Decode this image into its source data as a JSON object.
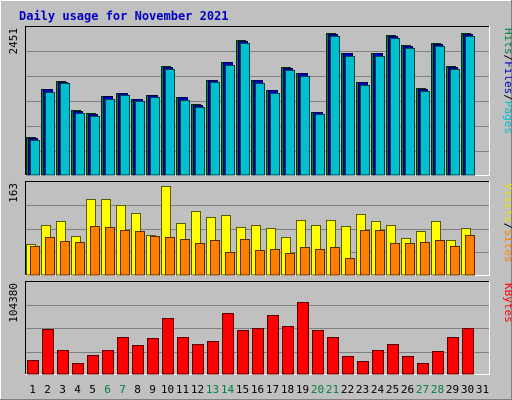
{
  "chart_data": [
    {
      "type": "bar",
      "title": "Daily usage for November 2021",
      "xlabel": "",
      "ylabel_parts": [
        {
          "text": "Pages",
          "color": "#00c0d0"
        },
        {
          "text": "/",
          "color": "#000000"
        },
        {
          "text": "Files",
          "color": "#0000c0"
        },
        {
          "text": "/",
          "color": "#000000"
        },
        {
          "text": "Hits",
          "color": "#008040"
        }
      ],
      "ymax_label": "2451",
      "ylim": [
        0,
        2451
      ],
      "categories": [
        "1",
        "2",
        "3",
        "4",
        "5",
        "6",
        "7",
        "8",
        "9",
        "10",
        "11",
        "12",
        "13",
        "14",
        "15",
        "16",
        "17",
        "18",
        "19",
        "20",
        "21",
        "22",
        "23",
        "24",
        "25",
        "26",
        "27",
        "28",
        "29",
        "30",
        "31"
      ],
      "weekend_categories": [
        "6",
        "7",
        "13",
        "14",
        "20",
        "21",
        "27",
        "28"
      ],
      "series": [
        {
          "name": "Hits",
          "color": "#008040",
          "values": [
            640,
            1470,
            1600,
            1100,
            1050,
            1350,
            1400,
            1300,
            1370,
            1850,
            1330,
            1200,
            1620,
            1930,
            2290,
            1620,
            1450,
            1830,
            1740,
            1080,
            2410,
            2080,
            1590,
            2080,
            2380,
            2210,
            1480,
            2240,
            1850,
            2410,
            0
          ]
        },
        {
          "name": "Files",
          "color": "#0000c0",
          "values": [
            630,
            1460,
            1590,
            1090,
            1040,
            1340,
            1390,
            1290,
            1360,
            1840,
            1320,
            1190,
            1610,
            1920,
            2280,
            1610,
            1440,
            1820,
            1730,
            1070,
            2400,
            2070,
            1580,
            2070,
            2370,
            2200,
            1470,
            2230,
            1840,
            2400,
            0
          ]
        },
        {
          "name": "Pages",
          "color": "#00c0d0",
          "values": [
            600,
            1420,
            1560,
            1060,
            1010,
            1300,
            1360,
            1260,
            1320,
            1810,
            1280,
            1150,
            1580,
            1880,
            2240,
            1570,
            1400,
            1780,
            1690,
            1030,
            2360,
            2030,
            1540,
            2030,
            2330,
            2160,
            1430,
            2190,
            1800,
            2360,
            0
          ]
        }
      ]
    },
    {
      "type": "bar",
      "title": "",
      "ylabel_parts": [
        {
          "text": "Sites",
          "color": "#ff8000"
        },
        {
          "text": "/",
          "color": "#000000"
        },
        {
          "text": "Visits",
          "color": "#e8e000"
        }
      ],
      "ymax_label": "163",
      "ylim": [
        0,
        163
      ],
      "series": [
        {
          "name": "Visits",
          "color": "#ffff00",
          "values": [
            56,
            92,
            98,
            72,
            140,
            140,
            128,
            114,
            74,
            163,
            96,
            118,
            106,
            110,
            88,
            92,
            86,
            70,
            100,
            92,
            100,
            90,
            112,
            98,
            92,
            68,
            80,
            98,
            64,
            86,
            0
          ]
        },
        {
          "name": "Sites",
          "color": "#ff8000",
          "values": [
            54,
            70,
            62,
            60,
            90,
            88,
            82,
            80,
            72,
            70,
            66,
            58,
            64,
            42,
            66,
            46,
            48,
            40,
            52,
            48,
            52,
            32,
            82,
            82,
            58,
            58,
            60,
            64,
            54,
            74,
            0
          ]
        }
      ]
    },
    {
      "type": "bar",
      "title": "",
      "ylabel_parts": [
        {
          "text": "KBytes",
          "color": "#ff0000"
        }
      ],
      "ymax_label": "104380",
      "ylim": [
        0,
        104380
      ],
      "series": [
        {
          "name": "KBytes",
          "color": "#ff0000",
          "values": [
            16500,
            53500,
            28000,
            13200,
            22500,
            28000,
            44000,
            34500,
            42500,
            66000,
            43500,
            36000,
            39500,
            72000,
            52500,
            54000,
            70000,
            56500,
            85000,
            52000,
            44000,
            21000,
            16000,
            28000,
            35500,
            21000,
            13000,
            27000,
            44000,
            55000,
            0
          ]
        }
      ]
    }
  ]
}
